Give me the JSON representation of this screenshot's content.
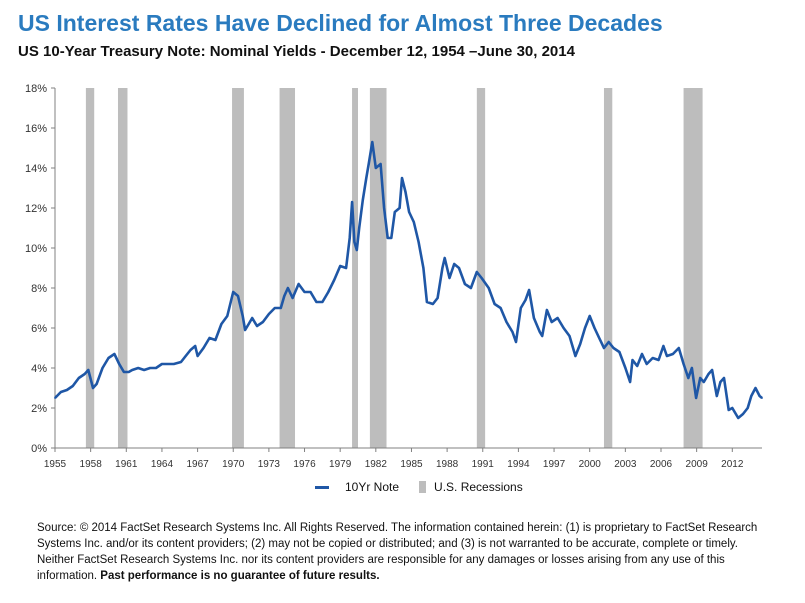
{
  "title": "US Interest Rates Have Declined for Almost Three Decades",
  "subtitle": "US 10-Year Treasury Note: Nominal Yields - December 12, 1954 –June 30, 2014",
  "legend": {
    "series_label": "10Yr Note",
    "recession_label": "U.S. Recessions"
  },
  "source": {
    "text": "Source: © 2014 FactSet Research Systems Inc. All Rights Reserved. The information contained herein: (1) is proprietary to FactSet Research Systems Inc. and/or its content providers; (2) may not be copied or distributed; and (3) is not warranted to be accurate, complete or timely. Neither FactSet Research Systems Inc. nor its content providers are responsible for any damages or losses arising from any use of this information.",
    "bold": "Past performance is no guarantee of future results."
  },
  "colors": {
    "title": "#2a7bbf",
    "series": "#1f57a6",
    "recession": "#bdbdbd",
    "axis": "#808080"
  },
  "chart_data": {
    "type": "line",
    "xlim": [
      1955,
      2014.5
    ],
    "ylim": [
      0,
      18
    ],
    "yticks": [
      0,
      2,
      4,
      6,
      8,
      10,
      12,
      14,
      16,
      18
    ],
    "ytick_labels": [
      "0%",
      "2%",
      "4%",
      "6%",
      "8%",
      "10%",
      "12%",
      "14%",
      "16%",
      "18%"
    ],
    "xticks": [
      1955,
      1958,
      1961,
      1964,
      1967,
      1970,
      1973,
      1976,
      1979,
      1982,
      1985,
      1988,
      1991,
      1994,
      1997,
      2000,
      2003,
      2006,
      2009,
      2012
    ],
    "xtick_labels": [
      "1955",
      "1958",
      "1961",
      "1964",
      "1967",
      "1970",
      "1973",
      "1976",
      "1979",
      "1982",
      "1985",
      "1988",
      "1991",
      "1994",
      "1997",
      "2000",
      "2003",
      "2006",
      "2009",
      "2012"
    ],
    "grid": false,
    "legend_position": "bottom",
    "recessions": [
      [
        1957.6,
        1958.3
      ],
      [
        1960.3,
        1961.1
      ],
      [
        1969.9,
        1970.9
      ],
      [
        1973.9,
        1975.2
      ],
      [
        1980.0,
        1980.5
      ],
      [
        1981.5,
        1982.9
      ],
      [
        1990.5,
        1991.2
      ],
      [
        2001.2,
        2001.9
      ],
      [
        2007.9,
        2009.5
      ]
    ],
    "series": [
      {
        "name": "10Yr Note",
        "x": [
          1955.0,
          1955.5,
          1956.0,
          1956.5,
          1957.0,
          1957.5,
          1957.8,
          1958.2,
          1958.5,
          1959.0,
          1959.5,
          1960.0,
          1960.4,
          1960.8,
          1961.2,
          1961.5,
          1962.0,
          1962.5,
          1963.0,
          1963.5,
          1964.0,
          1965.0,
          1965.6,
          1966.0,
          1966.4,
          1966.8,
          1967.0,
          1967.5,
          1968.0,
          1968.5,
          1969.0,
          1969.5,
          1970.0,
          1970.4,
          1970.8,
          1971.0,
          1971.3,
          1971.6,
          1972.0,
          1972.5,
          1973.0,
          1973.5,
          1974.0,
          1974.3,
          1974.6,
          1975.0,
          1975.5,
          1976.0,
          1976.5,
          1977.0,
          1977.5,
          1978.0,
          1978.5,
          1979.0,
          1979.5,
          1979.8,
          1980.0,
          1980.2,
          1980.4,
          1980.6,
          1980.9,
          1981.2,
          1981.4,
          1981.7,
          1982.0,
          1982.4,
          1982.7,
          1983.0,
          1983.3,
          1983.6,
          1984.0,
          1984.2,
          1984.5,
          1984.8,
          1985.2,
          1985.6,
          1986.0,
          1986.3,
          1986.8,
          1987.2,
          1987.6,
          1987.8,
          1988.2,
          1988.6,
          1989.0,
          1989.5,
          1990.0,
          1990.5,
          1990.9,
          1991.5,
          1992.0,
          1992.5,
          1993.0,
          1993.5,
          1993.8,
          1994.2,
          1994.6,
          1994.9,
          1995.3,
          1995.8,
          1996.0,
          1996.4,
          1996.8,
          1997.3,
          1997.8,
          1998.3,
          1998.8,
          1999.2,
          1999.6,
          2000.0,
          2000.4,
          2000.8,
          2001.2,
          2001.6,
          2002.0,
          2002.5,
          2003.0,
          2003.4,
          2003.6,
          2004.0,
          2004.4,
          2004.8,
          2005.3,
          2005.8,
          2006.2,
          2006.5,
          2007.0,
          2007.5,
          2007.9,
          2008.3,
          2008.6,
          2008.95,
          2009.3,
          2009.6,
          2010.0,
          2010.3,
          2010.7,
          2011.0,
          2011.3,
          2011.7,
          2012.0,
          2012.5,
          2012.9,
          2013.3,
          2013.6,
          2013.95,
          2014.3,
          2014.5
        ],
        "values": [
          2.5,
          2.8,
          2.9,
          3.1,
          3.5,
          3.7,
          3.9,
          3.0,
          3.2,
          4.0,
          4.5,
          4.7,
          4.2,
          3.8,
          3.8,
          3.9,
          4.0,
          3.9,
          4.0,
          4.0,
          4.2,
          4.2,
          4.3,
          4.6,
          4.9,
          5.1,
          4.6,
          5.0,
          5.5,
          5.4,
          6.2,
          6.6,
          7.8,
          7.6,
          6.6,
          5.9,
          6.2,
          6.5,
          6.1,
          6.3,
          6.7,
          7.0,
          7.0,
          7.6,
          8.0,
          7.5,
          8.2,
          7.8,
          7.8,
          7.3,
          7.3,
          7.8,
          8.4,
          9.1,
          9.0,
          10.5,
          12.3,
          10.3,
          9.9,
          11.0,
          12.4,
          13.5,
          14.2,
          15.3,
          14.0,
          14.2,
          12.0,
          10.5,
          10.5,
          11.8,
          12.0,
          13.5,
          12.8,
          11.8,
          11.3,
          10.3,
          9.0,
          7.3,
          7.2,
          7.5,
          9.0,
          9.5,
          8.5,
          9.2,
          9.0,
          8.2,
          8.0,
          8.8,
          8.5,
          8.0,
          7.2,
          7.0,
          6.3,
          5.8,
          5.3,
          7.0,
          7.4,
          7.9,
          6.5,
          5.8,
          5.6,
          6.9,
          6.3,
          6.5,
          6.0,
          5.6,
          4.6,
          5.2,
          6.0,
          6.6,
          6.0,
          5.5,
          5.0,
          5.3,
          5.0,
          4.8,
          4.0,
          3.3,
          4.4,
          4.1,
          4.7,
          4.2,
          4.5,
          4.4,
          5.1,
          4.6,
          4.7,
          5.0,
          4.2,
          3.5,
          4.0,
          2.5,
          3.5,
          3.3,
          3.7,
          3.9,
          2.6,
          3.3,
          3.5,
          1.9,
          2.0,
          1.5,
          1.7,
          2.0,
          2.6,
          3.0,
          2.6,
          2.5
        ]
      }
    ]
  }
}
